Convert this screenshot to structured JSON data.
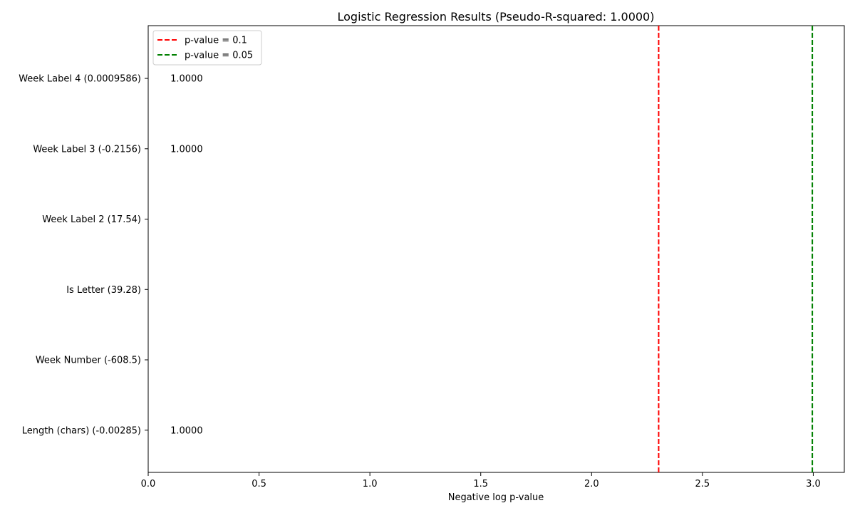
{
  "chart_data": {
    "type": "bar",
    "orientation": "horizontal",
    "title": "Logistic Regression Results (Pseudo-R-squared: 1.0000)",
    "xlabel": "Negative log p-value",
    "ylabel": "",
    "xlim": [
      0,
      3.14
    ],
    "xticks": [
      0.0,
      0.5,
      1.0,
      1.5,
      2.0,
      2.5,
      3.0
    ],
    "xtick_labels": [
      "0.0",
      "0.5",
      "1.0",
      "1.5",
      "2.0",
      "2.5",
      "3.0"
    ],
    "grid": false,
    "categories": [
      "Length (chars) (-0.00285)",
      "Week Number (-608.5)",
      "Is Letter (39.28)",
      "Week Label 2 (17.54)",
      "Week Label 3 (-0.2156)",
      "Week Label 4 (0.0009586)"
    ],
    "values": [
      0,
      0,
      0,
      0,
      0,
      0
    ],
    "data_labels": [
      "1.0000",
      "",
      "",
      "",
      "1.0000",
      "1.0000"
    ],
    "reference_lines": [
      {
        "label": "p-value = 0.1",
        "x": 2.302585,
        "color": "#ff0000",
        "style": "dashed"
      },
      {
        "label": "p-value = 0.05",
        "x": 2.995732,
        "color": "#008000",
        "style": "dashed"
      }
    ],
    "legend_position": "top-left"
  }
}
